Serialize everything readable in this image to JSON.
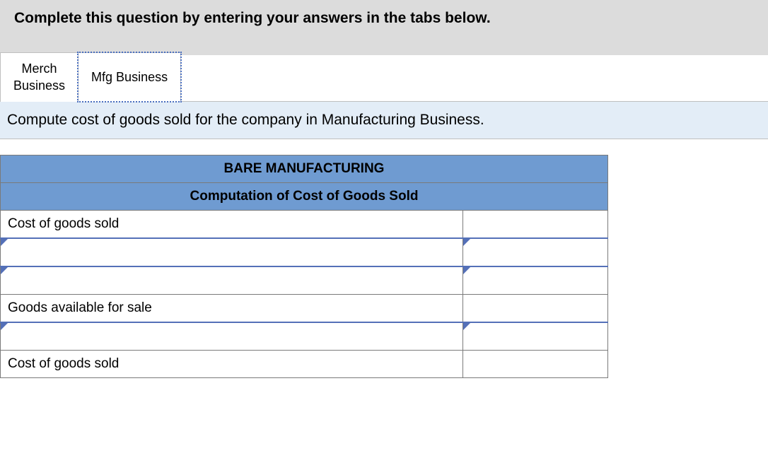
{
  "header": {
    "title": "Complete this question by entering your answers in the tabs below."
  },
  "tabs": {
    "items": [
      {
        "label_line1": "Merch",
        "label_line2": "Business",
        "active": false
      },
      {
        "label_line1": "Mfg Business",
        "label_line2": "",
        "active": true
      }
    ]
  },
  "instruction": {
    "text": "Compute cost of goods sold for the company in Manufacturing Business."
  },
  "worksheet": {
    "company": "BARE MANUFACTURING",
    "statement_title": "Computation of Cost of Goods Sold",
    "rows": [
      {
        "label": "Cost of goods sold",
        "value": "",
        "editable_label": false,
        "editable_value": false,
        "indent": false
      },
      {
        "label": "",
        "value": "",
        "editable_label": true,
        "editable_value": true,
        "indent": false
      },
      {
        "label": "",
        "value": "",
        "editable_label": true,
        "editable_value": true,
        "indent": false
      },
      {
        "label": "Goods available for sale",
        "value": "",
        "editable_label": false,
        "editable_value": false,
        "indent": true
      },
      {
        "label": "",
        "value": "",
        "editable_label": true,
        "editable_value": true,
        "indent": false
      },
      {
        "label": "Cost of goods sold",
        "value": "",
        "editable_label": false,
        "editable_value": false,
        "indent": true
      }
    ]
  },
  "colors": {
    "header_bg": "#dcdcdc",
    "instruction_bg": "#e3edf7",
    "table_header_bg": "#6f9bd1",
    "edit_accent": "#5470b8",
    "border": "#7a7a7a",
    "tab_dotted": "#4a6fbf"
  }
}
